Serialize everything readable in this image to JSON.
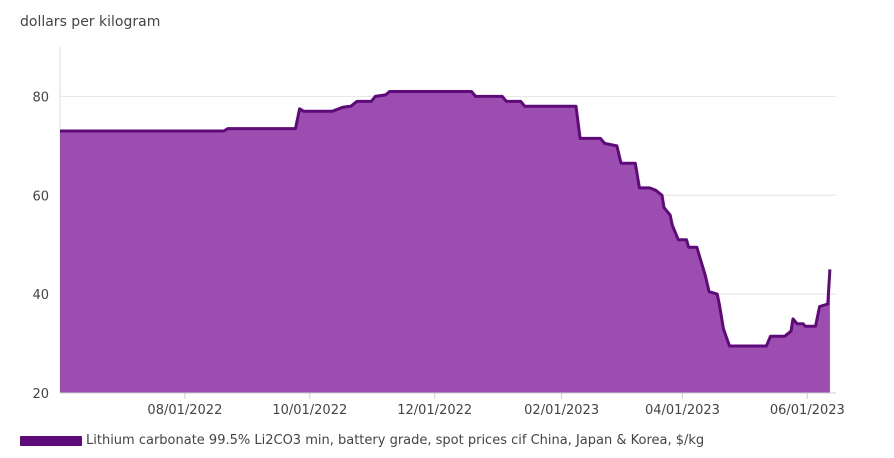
{
  "chart_data": {
    "type": "area",
    "title": "",
    "ylabel": "dollars per kilogram",
    "xlabel": "",
    "ylim": [
      20,
      90
    ],
    "yticks": [
      20,
      40,
      60,
      80
    ],
    "x_range": [
      "2022-06-01",
      "2023-06-15"
    ],
    "xticks": [
      "08/01/2022",
      "10/01/2022",
      "12/01/2022",
      "02/01/2023",
      "04/01/2023",
      "06/01/2023"
    ],
    "grid": true,
    "legend_position": "bottom-left",
    "colors": {
      "fill": "#9b4db0",
      "line": "#5e0b7a"
    },
    "series": [
      {
        "name": "Lithium carbonate 99.5% Li2CO3 min, battery grade, spot prices cif China, Japan & Korea, $/kg",
        "points": [
          [
            "2022-06-01",
            73
          ],
          [
            "2022-08-20",
            73
          ],
          [
            "2022-08-22",
            73.5
          ],
          [
            "2022-09-24",
            73.5
          ],
          [
            "2022-09-26",
            77.5
          ],
          [
            "2022-09-28",
            77
          ],
          [
            "2022-10-12",
            77
          ],
          [
            "2022-10-17",
            77.8
          ],
          [
            "2022-10-21",
            78
          ],
          [
            "2022-10-24",
            79
          ],
          [
            "2022-10-31",
            79
          ],
          [
            "2022-11-02",
            80
          ],
          [
            "2022-11-07",
            80.3
          ],
          [
            "2022-11-09",
            81
          ],
          [
            "2022-12-19",
            81
          ],
          [
            "2022-12-21",
            80
          ],
          [
            "2023-01-03",
            80
          ],
          [
            "2023-01-05",
            79
          ],
          [
            "2023-01-12",
            79
          ],
          [
            "2023-01-14",
            78
          ],
          [
            "2023-02-08",
            78
          ],
          [
            "2023-02-10",
            71.5
          ],
          [
            "2023-02-20",
            71.5
          ],
          [
            "2023-02-22",
            70.5
          ],
          [
            "2023-02-28",
            70
          ],
          [
            "2023-03-02",
            66.5
          ],
          [
            "2023-03-09",
            66.5
          ],
          [
            "2023-03-11",
            61.5
          ],
          [
            "2023-03-16",
            61.5
          ],
          [
            "2023-03-19",
            61
          ],
          [
            "2023-03-22",
            60
          ],
          [
            "2023-03-23",
            57.5
          ],
          [
            "2023-03-26",
            56
          ],
          [
            "2023-03-27",
            54
          ],
          [
            "2023-03-30",
            51
          ],
          [
            "2023-04-03",
            51
          ],
          [
            "2023-04-04",
            49.5
          ],
          [
            "2023-04-08",
            49.5
          ],
          [
            "2023-04-12",
            44
          ],
          [
            "2023-04-14",
            40.5
          ],
          [
            "2023-04-18",
            40
          ],
          [
            "2023-04-19",
            38
          ],
          [
            "2023-04-21",
            33
          ],
          [
            "2023-04-24",
            29.5
          ],
          [
            "2023-05-12",
            29.5
          ],
          [
            "2023-05-14",
            31.5
          ],
          [
            "2023-05-21",
            31.5
          ],
          [
            "2023-05-24",
            32.5
          ],
          [
            "2023-05-25",
            35
          ],
          [
            "2023-05-27",
            34
          ],
          [
            "2023-05-30",
            34
          ],
          [
            "2023-05-31",
            33.5
          ],
          [
            "2023-06-05",
            33.5
          ],
          [
            "2023-06-07",
            37.5
          ],
          [
            "2023-06-11",
            38
          ],
          [
            "2023-06-12",
            45
          ]
        ]
      }
    ]
  }
}
